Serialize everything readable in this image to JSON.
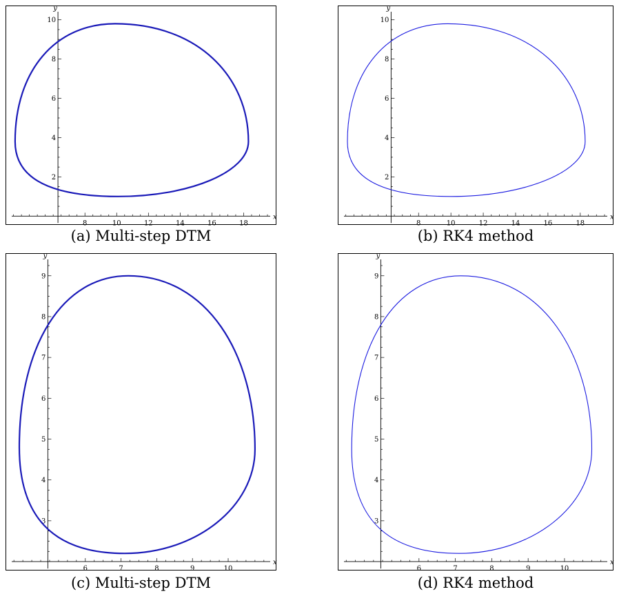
{
  "chart_data": [
    {
      "type": "line",
      "caption": "(a) Multi-step DTM",
      "xlabel": "x",
      "ylabel": "y",
      "xlim": [
        3.3,
        19.5
      ],
      "ylim": [
        -0.2,
        10.2
      ],
      "x_origin": 6.3,
      "y_origin": 0.0,
      "xticks": [
        8,
        10,
        12,
        14,
        16,
        18
      ],
      "yticks": [
        2,
        4,
        6,
        8,
        10
      ],
      "cycle": {
        "x_min": 3.6,
        "x_max": 18.3,
        "y_min": 1.0,
        "y_max": 9.8,
        "x_at_y_max": 9.9,
        "x_at_y_min": 10.1,
        "y_at_x_min": 3.8,
        "y_at_x_max": 3.8
      },
      "stroke_width": 2.2,
      "color": "#1a1ab8"
    },
    {
      "type": "line",
      "caption": "(b) RK4 method",
      "xlabel": "x",
      "ylabel": "y",
      "xlim": [
        3.3,
        19.5
      ],
      "ylim": [
        -0.2,
        10.2
      ],
      "x_origin": 6.3,
      "y_origin": 0.0,
      "xticks": [
        8,
        10,
        12,
        14,
        16,
        18
      ],
      "yticks": [
        2,
        4,
        6,
        8,
        10
      ],
      "cycle": {
        "x_min": 3.6,
        "x_max": 18.3,
        "y_min": 1.0,
        "y_max": 9.8,
        "x_at_y_max": 9.8,
        "x_at_y_min": 10.0,
        "y_at_x_min": 3.8,
        "y_at_x_max": 3.8
      },
      "stroke_width": 1.1,
      "color": "#1a1ae0"
    },
    {
      "type": "line",
      "caption": "(c) Multi-step DTM",
      "xlabel": "x",
      "ylabel": "y",
      "xlim": [
        3.9,
        11.1
      ],
      "ylim": [
        1.9,
        9.3
      ],
      "x_origin": 4.95,
      "y_origin": 2.0,
      "xticks": [
        6,
        7,
        8,
        9,
        10
      ],
      "yticks": [
        3,
        4,
        5,
        6,
        7,
        8,
        9
      ],
      "cycle": {
        "x_min": 4.15,
        "x_max": 10.75,
        "y_min": 2.2,
        "y_max": 9.0,
        "x_at_y_max": 7.2,
        "x_at_y_min": 7.1,
        "y_at_x_min": 4.8,
        "y_at_x_max": 4.75
      },
      "stroke_width": 2.2,
      "color": "#1a1ab8"
    },
    {
      "type": "line",
      "caption": "(d) RK4 method",
      "xlabel": "x",
      "ylabel": "y",
      "xlim": [
        3.9,
        11.1
      ],
      "ylim": [
        1.9,
        9.3
      ],
      "x_origin": 4.95,
      "y_origin": 2.0,
      "xticks": [
        6,
        7,
        8,
        9,
        10
      ],
      "yticks": [
        3,
        4,
        5,
        6,
        7,
        8,
        9
      ],
      "cycle": {
        "x_min": 4.15,
        "x_max": 10.75,
        "y_min": 2.2,
        "y_max": 9.0,
        "x_at_y_max": 7.15,
        "x_at_y_min": 7.1,
        "y_at_x_min": 4.75,
        "y_at_x_max": 4.75
      },
      "stroke_width": 1.1,
      "color": "#1a1ae0"
    }
  ]
}
